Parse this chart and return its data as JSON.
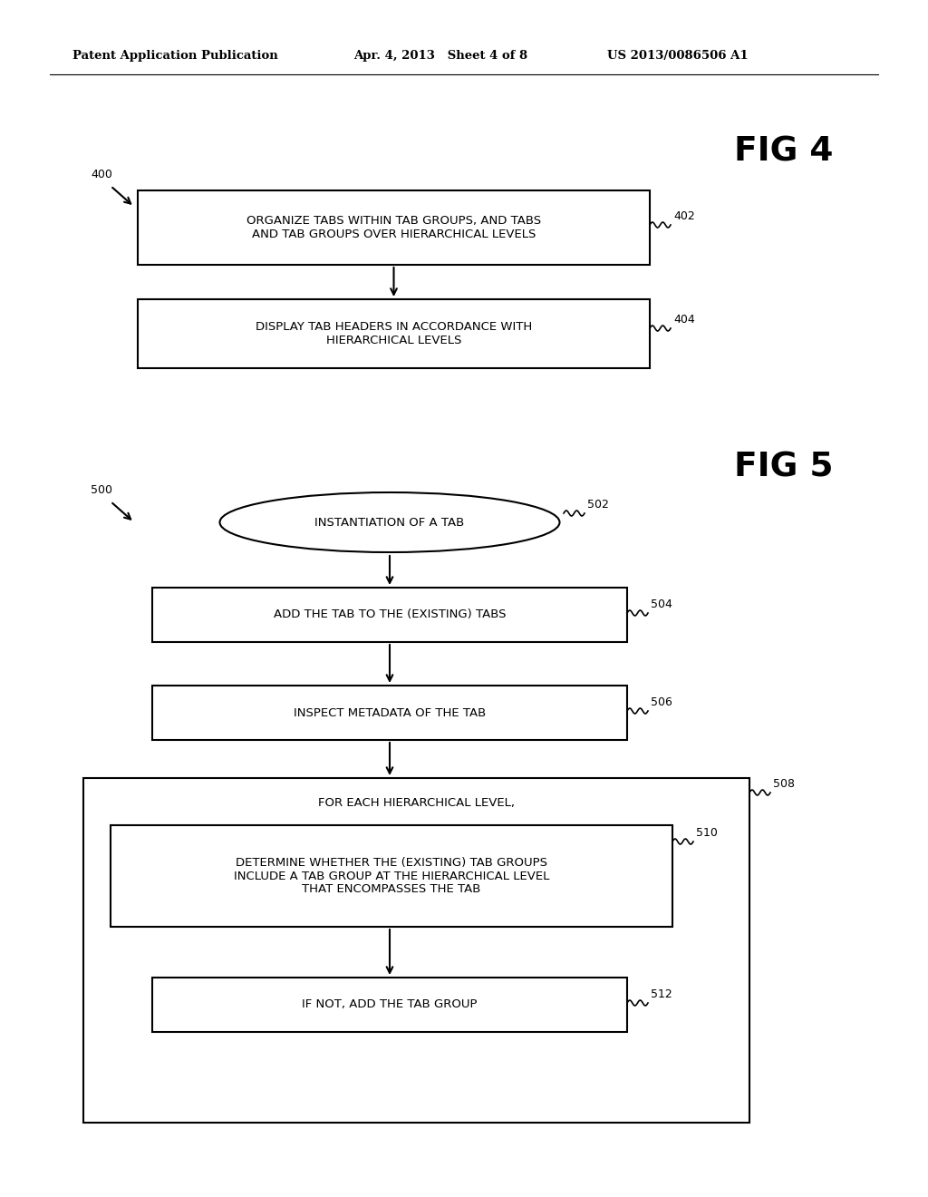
{
  "background_color": "#ffffff",
  "header_left": "Patent Application Publication",
  "header_center": "Apr. 4, 2013   Sheet 4 of 8",
  "header_right": "US 2013/0086506 A1",
  "fig4_label": "FIG 4",
  "fig5_label": "FIG 5",
  "fig4_ref": "400",
  "fig5_ref": "500",
  "box402_line1": "ORGANIZE TABS WITHIN TAB GROUPS, AND TABS",
  "box402_line2": "AND TAB GROUPS OVER HIERARCHICAL LEVELS",
  "box402_ref": "402",
  "box404_line1": "DISPLAY TAB HEADERS IN ACCORDANCE WITH",
  "box404_line2": "HIERARCHICAL LEVELS",
  "box404_ref": "404",
  "ellipse502_text": "INSTANTIATION OF A TAB",
  "ellipse502_ref": "502",
  "box504_text": "ADD THE TAB TO THE (EXISTING) TABS",
  "box504_ref": "504",
  "box506_text": "INSPECT METADATA OF THE TAB",
  "box506_ref": "506",
  "outer508_text": "FOR EACH HIERARCHICAL LEVEL,",
  "outer508_ref": "508",
  "box510_line1": "DETERMINE WHETHER THE (EXISTING) TAB GROUPS",
  "box510_line2": "INCLUDE A TAB GROUP AT THE HIERARCHICAL LEVEL",
  "box510_line3": "THAT ENCOMPASSES THE TAB",
  "box510_ref": "510",
  "box512_text": "IF NOT, ADD THE TAB GROUP",
  "box512_ref": "512"
}
